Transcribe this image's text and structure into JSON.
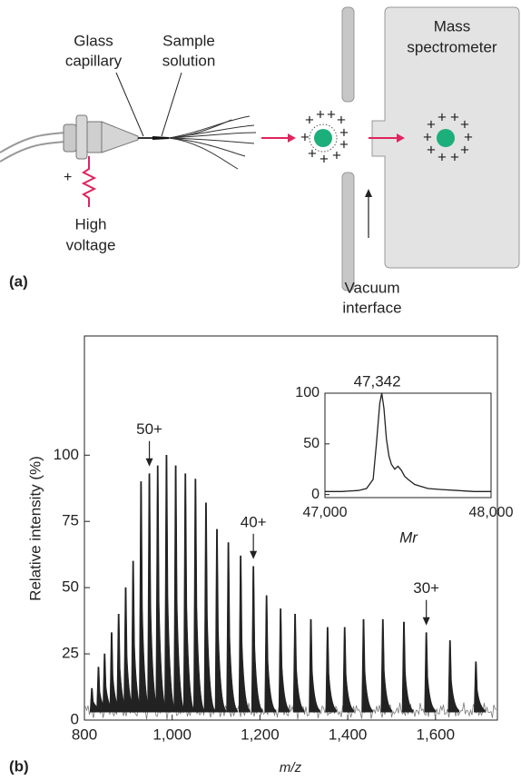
{
  "diagram": {
    "glass_capillary": [
      "Glass",
      "capillary"
    ],
    "sample_solution": [
      "Sample",
      "solution"
    ],
    "mass_spectrometer": [
      "Mass",
      "spectrometer"
    ],
    "high_voltage": [
      "High",
      "voltage"
    ],
    "vacuum_interface": [
      "Vacuum",
      "interface"
    ],
    "panel_label": "(a)"
  },
  "panel_label_b": "(b)",
  "chart_data": [
    {
      "type": "spectrum",
      "ylabel": "Relative intensity (%)",
      "xlabel": "m/z",
      "color": "#222222",
      "x": [
        817,
        832,
        846,
        862,
        878,
        894,
        911,
        929,
        948,
        967,
        987,
        1008,
        1030,
        1053,
        1077,
        1102,
        1128,
        1156,
        1185,
        1215,
        1247,
        1280,
        1316,
        1354,
        1393,
        1436,
        1480,
        1528,
        1579,
        1633,
        1692
      ],
      "values": [
        12,
        20,
        25,
        33,
        40,
        50,
        60,
        90,
        93,
        96,
        100,
        96,
        93,
        91,
        82,
        72,
        67,
        62,
        58,
        47,
        42,
        40,
        38,
        35,
        35,
        38,
        38,
        37,
        33,
        30,
        22
      ],
      "xlim": [
        800,
        1741
      ],
      "ylim": [
        0,
        145
      ],
      "xticks": [
        800,
        {
          "value": 1000,
          "label": "1,000"
        },
        {
          "value": 1200,
          "label": "1,200"
        },
        {
          "value": 1400,
          "label": "1,400"
        },
        {
          "value": 1600,
          "label": "1,600"
        }
      ],
      "yticks": [
        0,
        25,
        50,
        75,
        100
      ],
      "annotations": [
        "50+",
        "40+",
        "30+"
      ]
    },
    {
      "type": "line",
      "xlabel": "Mr",
      "annotation": "47,342",
      "color": "#222222",
      "x": [
        47000,
        47100,
        47200,
        47250,
        47290,
        47310,
        47330,
        47342,
        47355,
        47370,
        47385,
        47400,
        47420,
        47440,
        47460,
        47480,
        47500,
        47540,
        47580,
        47620,
        47700,
        47800,
        47900,
        48000
      ],
      "values": [
        3,
        3,
        4,
        6,
        15,
        50,
        90,
        100,
        85,
        55,
        38,
        30,
        25,
        28,
        24,
        18,
        15,
        10,
        8,
        6,
        5,
        4,
        3,
        3
      ],
      "xlim": [
        47000,
        48000
      ],
      "ylim": [
        -3,
        100
      ],
      "xticks": [
        {
          "value": 47000,
          "label": "47,000"
        },
        {
          "value": 48000,
          "label": "48,000"
        }
      ],
      "yticks": [
        0,
        50,
        100
      ]
    }
  ]
}
